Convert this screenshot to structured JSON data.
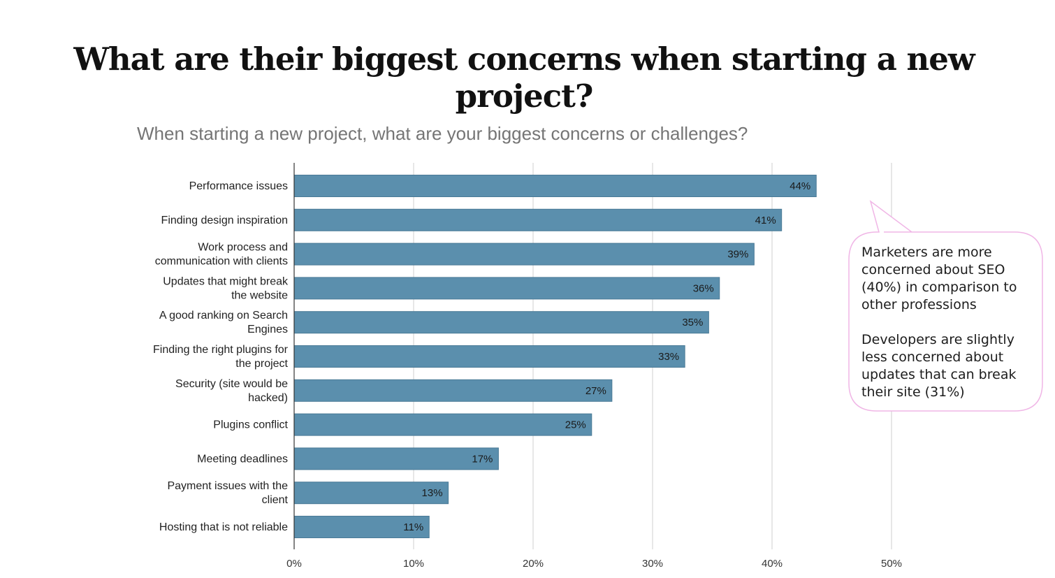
{
  "slide": {
    "title": "What are their biggest concerns when starting a new project?"
  },
  "callout": {
    "paragraphs": [
      [
        "Marketers are more",
        "concerned about SEO",
        "(40%) in comparison to",
        "other professions"
      ],
      [
        "Developers are slightly",
        "less concerned about",
        "updates that can break",
        "their site (31%)"
      ]
    ]
  },
  "colors": {
    "bar": "#5b8fad",
    "callout_border": "#f0b6e6"
  },
  "chart_data": {
    "type": "bar",
    "orientation": "horizontal",
    "title": "When starting a new project, what are your biggest concerns or challenges?",
    "categories": [
      [
        "Performance issues"
      ],
      [
        "Finding design inspiration"
      ],
      [
        "Work process and",
        "communication with clients"
      ],
      [
        "Updates that might break",
        "the website"
      ],
      [
        "A good ranking on Search",
        "Engines"
      ],
      [
        "Finding the right plugins for",
        "the project"
      ],
      [
        "Security (site would be",
        "hacked)"
      ],
      [
        "Plugins conflict"
      ],
      [
        "Meeting deadlines"
      ],
      [
        "Payment issues with the",
        "client"
      ],
      [
        "Hosting that is not reliable"
      ]
    ],
    "values": [
      43.7,
      40.8,
      38.5,
      35.6,
      34.7,
      32.7,
      26.6,
      24.9,
      17.1,
      12.9,
      11.3
    ],
    "value_labels": [
      "44%",
      "41%",
      "39%",
      "36%",
      "35%",
      "33%",
      "27%",
      "25%",
      "17%",
      "13%",
      "11%"
    ],
    "xlim": [
      0,
      50
    ],
    "ticks": [
      0,
      10,
      20,
      30,
      40,
      50
    ],
    "tick_labels": [
      "0%",
      "10%",
      "20%",
      "30%",
      "40%",
      "50%"
    ],
    "grid": true,
    "xlabel": "",
    "ylabel": ""
  }
}
